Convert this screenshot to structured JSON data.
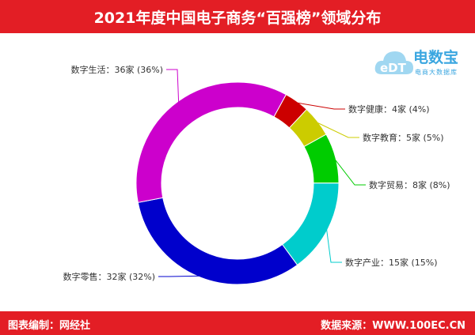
{
  "title": "2021年度中国电子商务“百强榜”领域分布",
  "logo": {
    "brand": "电数宝",
    "sub": "电商大数据库",
    "mark": "eDT"
  },
  "footer": {
    "left": "图表编制：网经社",
    "right": "数据来源：WWW.100EC.CN"
  },
  "chart_data": {
    "type": "pie",
    "style": "donut",
    "categories": [
      "数字健康",
      "数字教育",
      "数字贸易",
      "数字产业",
      "数字零售",
      "数字生活"
    ],
    "values": [
      4,
      5,
      8,
      15,
      32,
      36
    ],
    "labels": [
      "数字健康：4家 (4%)",
      "数字教育：5家 (5%)",
      "数字贸易：8家 (8%)",
      "数字产业：15家 (15%)",
      "数字零售：32家 (32%)",
      "数字生活：36家 (36%)"
    ],
    "colors": [
      "#cc0000",
      "#cccc00",
      "#00cc00",
      "#00cccc",
      "#0000cc",
      "#cc00cc"
    ]
  }
}
